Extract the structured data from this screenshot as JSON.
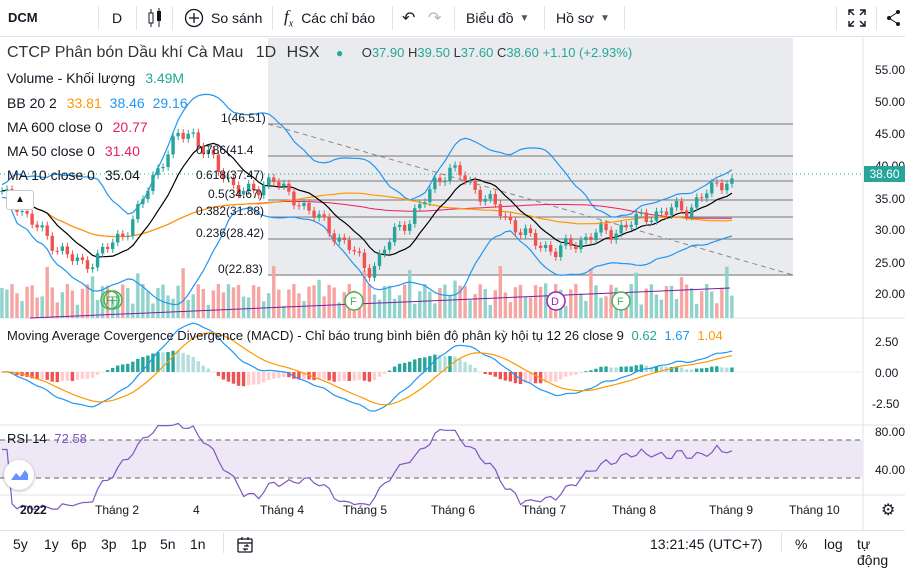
{
  "toolbar": {
    "symbol": "DCM",
    "interval": "D",
    "compare_label": "So sánh",
    "indicators_label": "Các chỉ báo",
    "chart_type_label": "Biểu đồ",
    "profile_label": "Hồ sơ"
  },
  "legend": {
    "title": "CTCP Phân bón Dầu khí Cà Mau",
    "interval": "1D",
    "exchange": "HSX",
    "o_label": "O",
    "o": "37.90",
    "h_label": "H",
    "h": "39.50",
    "l_label": "L",
    "l": "37.60",
    "c_label": "C",
    "c": "38.60",
    "change": "+1.10 (+2.93%)",
    "volume_label": "Volume - Khối lượng",
    "volume": "3.49M",
    "bb_label": "BB 20 2",
    "bb_v1": "33.81",
    "bb_v2": "38.46",
    "bb_v3": "29.16",
    "ma600_label": "MA 600 close 0",
    "ma600": "20.77",
    "ma50_label": "MA 50 close 0",
    "ma50": "31.40",
    "ma10_label": "MA 10 close 0",
    "ma10": "35.04"
  },
  "fib": {
    "labels": [
      "1(46.51)",
      "0.786(41.4",
      "0.618(37.47)",
      "0.5(34.67)",
      "0.382(31.88)",
      "0.236(28.42)",
      "0(22.83)"
    ]
  },
  "price_axis": [
    "55.00",
    "50.00",
    "45.00",
    "40.00",
    "35.00",
    "30.00",
    "25.00",
    "20.00"
  ],
  "last_price": "38.60",
  "macd": {
    "label": "Moving Average Covergence Divergence (MACD) - Chỉ báo trung bình biên độ phân kỳ hội tụ 12 26 close 9",
    "v1": "0.62",
    "v2": "1.67",
    "v3": "1.04",
    "axis": [
      "2.50",
      "0.00",
      "-2.50"
    ]
  },
  "rsi": {
    "label": "RSI 14",
    "value": "72.58",
    "axis": [
      "80.00",
      "40.00"
    ]
  },
  "time_axis": [
    "2022",
    "Tháng 2",
    "4",
    "Tháng 4",
    "Tháng 5",
    "Tháng 6",
    "Tháng 7",
    "Tháng 8",
    "Tháng 9",
    "Tháng 10"
  ],
  "markers": [
    "F",
    "F",
    "F",
    "D",
    "F"
  ],
  "bottom": {
    "ranges": [
      "5y",
      "1y",
      "6p",
      "3p",
      "1p",
      "5n",
      "1n"
    ],
    "time": "13:21:45 (UTC+7)",
    "pct": "%",
    "log": "log",
    "auto": "tự động"
  },
  "colors": {
    "up": "#26a69a",
    "down": "#ef5350",
    "bb": "#2196f3",
    "ma50": "#ff9800",
    "ma600": "#e91e63",
    "ma10": "#000000",
    "rsi": "#7e57c2"
  },
  "chart_data": {
    "type": "line",
    "price_close_approx": [
      36,
      35,
      32,
      30,
      28,
      26,
      25,
      26,
      28,
      30,
      33,
      38,
      42,
      45,
      46,
      43,
      40,
      38,
      36,
      37,
      39,
      36,
      35,
      33,
      31,
      29,
      27,
      24,
      26,
      30,
      32,
      34,
      38,
      40,
      39,
      37,
      35,
      33,
      31,
      29,
      28,
      27,
      28,
      29,
      30,
      30,
      31,
      32,
      33,
      33,
      34,
      34,
      36,
      38,
      38.6
    ],
    "ylim": [
      20,
      57
    ]
  }
}
